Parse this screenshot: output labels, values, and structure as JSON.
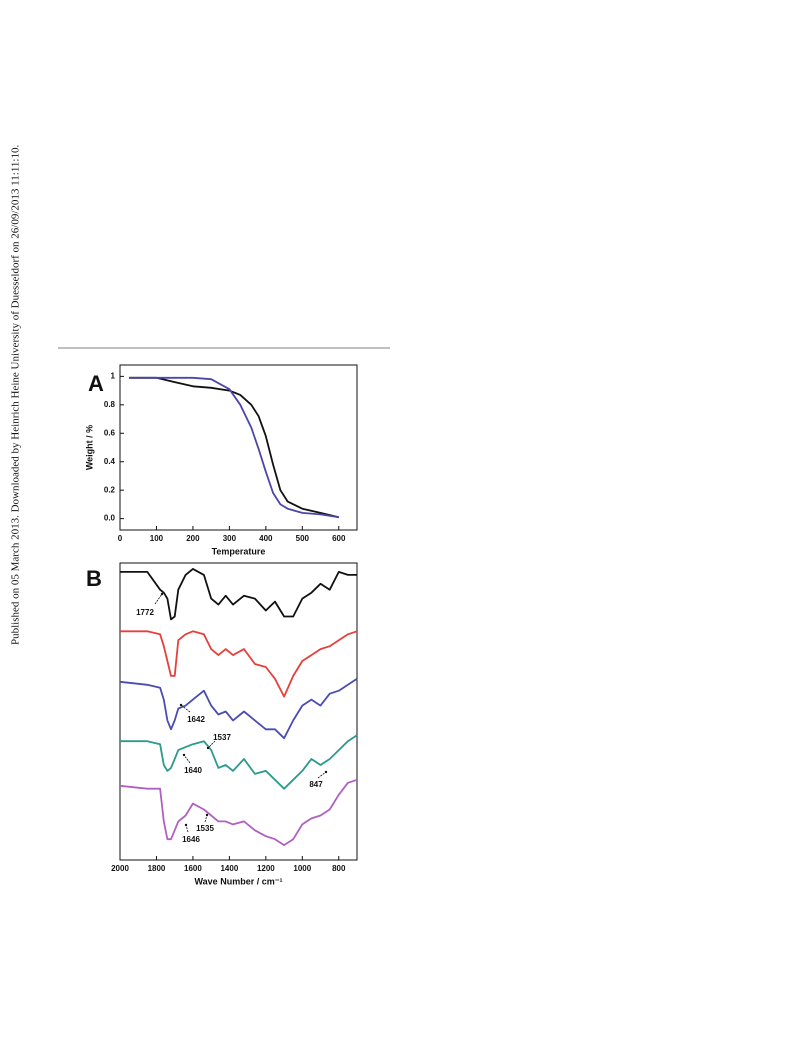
{
  "margin_note": "Published on 05 March 2013. Downloaded by Heinrich Heine University of Duesseldorf on 26/09/2013 11:11:10.",
  "chart_data": [
    {
      "type": "line",
      "panel_label": "A",
      "x_label": "Temperature",
      "y_label": "Weight / %",
      "x": [
        25,
        100,
        150,
        200,
        250,
        300,
        330,
        360,
        380,
        400,
        420,
        440,
        460,
        500,
        550,
        600
      ],
      "series": [
        {
          "color": "#111111",
          "values": [
            0.99,
            0.99,
            0.96,
            0.93,
            0.92,
            0.9,
            0.87,
            0.8,
            0.72,
            0.58,
            0.38,
            0.2,
            0.12,
            0.07,
            0.04,
            0.01
          ]
        },
        {
          "color": "#4b47a8",
          "values": [
            0.99,
            0.99,
            0.99,
            0.99,
            0.98,
            0.91,
            0.8,
            0.64,
            0.49,
            0.33,
            0.18,
            0.1,
            0.07,
            0.04,
            0.03,
            0.01
          ]
        }
      ],
      "xlim": [
        0,
        650
      ],
      "xticks": [
        0,
        100,
        200,
        300,
        400,
        500,
        600
      ],
      "ylim": [
        -0.08,
        1.08
      ],
      "yticks": [
        {
          "value": 0,
          "label": "0.0"
        },
        0.2,
        0.4,
        0.6,
        0.8,
        1
      ]
    },
    {
      "type": "line",
      "panel_label": "B",
      "x_label": "Wave Number / cm⁻¹",
      "x": [
        2000,
        1850,
        1780,
        1760,
        1740,
        1720,
        1700,
        1680,
        1640,
        1600,
        1540,
        1500,
        1460,
        1420,
        1380,
        1320,
        1260,
        1200,
        1150,
        1100,
        1050,
        1000,
        950,
        900,
        850,
        800,
        750,
        700
      ],
      "series": [
        {
          "color": "#111111",
          "values": [
            97,
            97,
            91,
            90,
            88,
            81,
            82,
            91,
            96,
            98,
            96,
            88,
            86,
            89,
            86,
            89,
            88,
            84,
            87,
            82,
            82,
            88,
            90,
            93,
            91,
            97,
            96,
            96
          ]
        },
        {
          "color": "#e5403a",
          "values": [
            77,
            77,
            76,
            72,
            67,
            62,
            62,
            74,
            76,
            77,
            76,
            71,
            69,
            71,
            69,
            71,
            66,
            65,
            61,
            55,
            62,
            67,
            69,
            71,
            72,
            74,
            76,
            77
          ]
        },
        {
          "color": "#4a4cb0",
          "values": [
            60,
            59,
            58,
            54,
            47,
            44,
            47,
            51,
            52,
            54,
            57,
            52,
            49,
            50,
            47,
            50,
            47,
            44,
            44,
            41,
            47,
            52,
            54,
            52,
            56,
            57,
            59,
            61
          ]
        },
        {
          "color": "#2a9a8c",
          "values": [
            40,
            40,
            39,
            32,
            30,
            31,
            34,
            37,
            38,
            39,
            40,
            37,
            31,
            32,
            30,
            34,
            29,
            30,
            27,
            24,
            27,
            30,
            34,
            32,
            34,
            37,
            40,
            42
          ]
        },
        {
          "color": "#b060c0",
          "values": [
            25,
            24,
            24,
            13,
            7,
            7,
            10,
            13,
            15,
            19,
            17,
            15,
            13,
            13,
            12,
            13,
            10,
            8,
            7,
            5,
            7,
            12,
            14,
            15,
            17,
            22,
            26,
            27
          ]
        }
      ],
      "xlim": [
        2000,
        700
      ],
      "xticks": [
        2000,
        1800,
        1600,
        1400,
        1200,
        1000,
        800
      ],
      "ylim": [
        0,
        100
      ],
      "annotations": [
        "1772",
        "1642",
        "1537",
        "1640",
        "847",
        "1535",
        "1646"
      ]
    }
  ]
}
